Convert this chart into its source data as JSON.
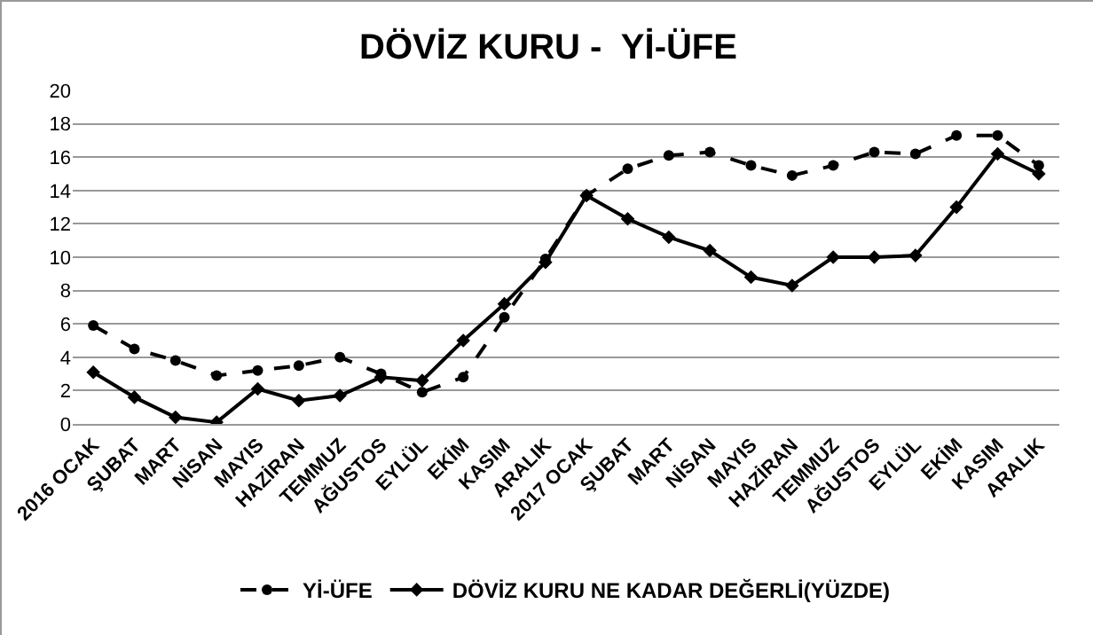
{
  "chart_data": {
    "type": "line",
    "title": "DÖVİZ KURU -  Yİ-ÜFE",
    "categories": [
      "2016 OCAK",
      "ŞUBAT",
      "MART",
      "NİSAN",
      "MAYIS",
      "HAZİRAN",
      "TEMMUZ",
      "AĞUSTOS",
      "EYLÜL",
      "EKİM",
      "KASIM",
      "ARALIK",
      "2017 OCAK",
      "ŞUBAT",
      "MART",
      "NİSAN",
      "MAYIS",
      "HAZİRAN",
      "TEMMUZ",
      "AĞUSTOS",
      "EYLÜL",
      "EKİM",
      "KASIM",
      "ARALIK"
    ],
    "series": [
      {
        "name": "Yİ-ÜFE",
        "color": "#000000",
        "line_style": "dashed",
        "marker": "circle",
        "values": [
          5.9,
          4.5,
          3.8,
          2.9,
          3.2,
          3.5,
          4.0,
          3.0,
          1.9,
          2.8,
          6.4,
          9.9,
          13.7,
          15.3,
          16.1,
          16.3,
          15.5,
          14.9,
          15.5,
          16.3,
          16.2,
          17.3,
          17.3,
          15.5
        ]
      },
      {
        "name": "DÖVİZ KURU NE KADAR DEĞERLİ(YÜZDE)",
        "color": "#000000",
        "line_style": "solid",
        "marker": "diamond",
        "values": [
          3.1,
          1.6,
          0.4,
          0.1,
          2.1,
          1.4,
          1.7,
          2.8,
          2.6,
          5.0,
          7.2,
          9.7,
          13.7,
          12.3,
          11.2,
          10.4,
          8.8,
          8.3,
          10.0,
          10.0,
          10.1,
          13.0,
          16.2,
          15.0
        ]
      }
    ],
    "ylim": [
      0,
      20
    ],
    "yticks": [
      0,
      2,
      4,
      6,
      8,
      10,
      12,
      14,
      16,
      18,
      20
    ],
    "grid": "y",
    "legend": "bottom"
  }
}
